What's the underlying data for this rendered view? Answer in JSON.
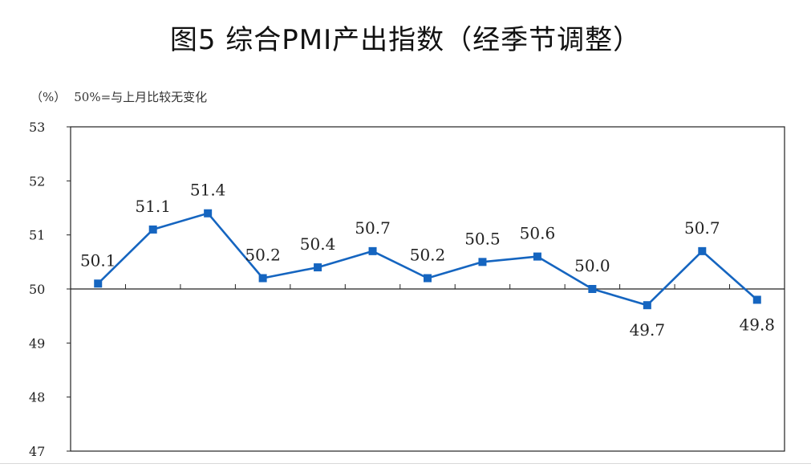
{
  "title": "图5  综合PMI产出指数（经季节调整）",
  "unit_label": "（%）",
  "note": "50%=与上月比较无变化",
  "colors": {
    "series": "#1565C0",
    "axis": "#222222",
    "reference": "#222222"
  },
  "chart_data": {
    "type": "line",
    "title": "图5  综合PMI产出指数（经季节调整）",
    "ylabel": "（%）",
    "ylim": [
      47,
      53
    ],
    "yticks": [
      53,
      52,
      51,
      50,
      49,
      48,
      47
    ],
    "reference_line": 50,
    "grid": false,
    "legend": "none",
    "x": [
      1,
      2,
      3,
      4,
      5,
      6,
      7,
      8,
      9,
      10,
      11,
      12,
      13
    ],
    "series": [
      {
        "values": [
          50.1,
          51.1,
          51.4,
          50.2,
          50.4,
          50.7,
          50.2,
          50.5,
          50.6,
          50.0,
          49.7,
          50.7,
          49.8
        ],
        "labels": [
          "50.1",
          "51.1",
          "51.4",
          "50.2",
          "50.4",
          "50.7",
          "50.2",
          "50.5",
          "50.6",
          "50.0",
          "49.7",
          "50.7",
          "49.8"
        ]
      }
    ]
  }
}
